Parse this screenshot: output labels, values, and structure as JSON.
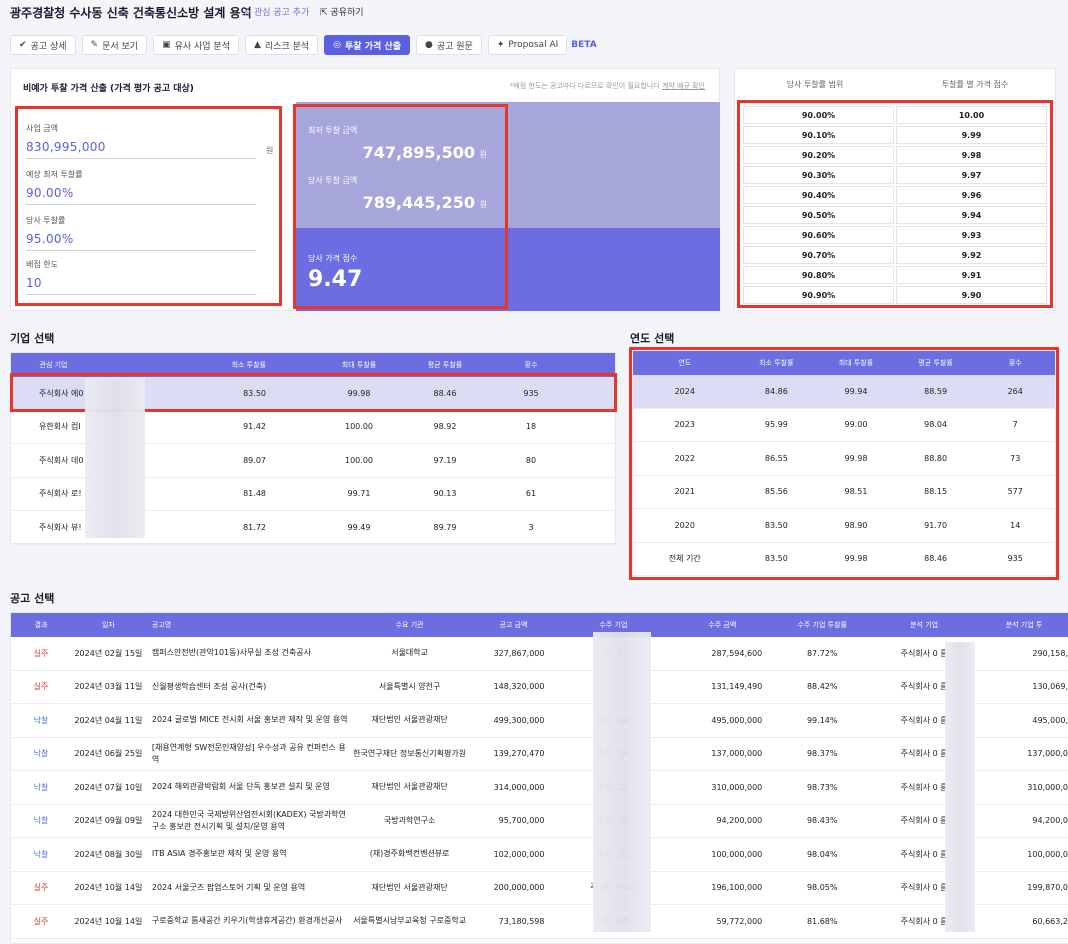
{
  "header": {
    "title": "광주경찰청 수사동 신축 건축통신소방 설계 용역",
    "fav_label": "관심 공고 추가",
    "share_label": "공유하기"
  },
  "tabs": [
    {
      "label": "공고 상세",
      "icon": "check-icon"
    },
    {
      "label": "문서 보기",
      "icon": "pencil-icon"
    },
    {
      "label": "유사 사업 분석",
      "icon": "briefcase-icon"
    },
    {
      "label": "리스크 분석",
      "icon": "warning-icon"
    },
    {
      "label": "투찰 가격 산출",
      "icon": "coins-icon",
      "active": true
    },
    {
      "label": "공고 원문",
      "icon": "flag-icon"
    },
    {
      "label": "Proposal AI",
      "icon": "sparkle-icon"
    }
  ],
  "beta": "BETA",
  "calc": {
    "title": "비예가 투찰 가격 산출 (가격 평가 공고 대상)",
    "note": "*배점 한도는 공고마다 다르므로 확인이 필요합니다",
    "note_link": "계약 예규 확인",
    "won": "원",
    "fields": [
      {
        "label": "사업 금액",
        "value": "830,995,000"
      },
      {
        "label": "예상 최저 투찰률",
        "value": "90.00%"
      },
      {
        "label": "당사 투찰률",
        "value": "95.00%"
      },
      {
        "label": "배점 한도",
        "value": "10"
      }
    ],
    "min_bid_label": "최저 투찰 금액",
    "min_bid_value": "747,895,500",
    "our_bid_label": "당사 투찰 금액",
    "our_bid_value": "789,445,250",
    "score_label": "당사 가격 점수",
    "score_value": "9.47"
  },
  "range": {
    "head": [
      "당사 투찰률 범위",
      "투찰률 별 가격 점수"
    ],
    "rows": [
      [
        "90.00%",
        "10.00"
      ],
      [
        "90.10%",
        "9.99"
      ],
      [
        "90.20%",
        "9.98"
      ],
      [
        "90.30%",
        "9.97"
      ],
      [
        "90.40%",
        "9.96"
      ],
      [
        "90.50%",
        "9.94"
      ],
      [
        "90.60%",
        "9.93"
      ],
      [
        "90.70%",
        "9.92"
      ],
      [
        "90.80%",
        "9.91"
      ],
      [
        "90.90%",
        "9.90"
      ]
    ]
  },
  "company": {
    "title": "기업 선택",
    "head": [
      "관심 기업",
      "최소 투찰률",
      "최대 투찰률",
      "평균 투찰률",
      "횟수"
    ],
    "rows": [
      [
        "주식회사 에0",
        "83.50",
        "99.98",
        "88.46",
        "935"
      ],
      [
        "유한회사 컴I",
        "91.42",
        "100.00",
        "98.92",
        "18"
      ],
      [
        "주식회사 데0",
        "89.07",
        "100.00",
        "97.19",
        "80"
      ],
      [
        "주식회사 로!",
        "81.48",
        "99.71",
        "90.13",
        "61"
      ],
      [
        "주식회사 뷰!",
        "81.72",
        "99.49",
        "89.79",
        "3"
      ]
    ]
  },
  "year": {
    "title": "연도 선택",
    "head": [
      "연도",
      "최소 투찰률",
      "최대 투찰률",
      "평균 투찰률",
      "횟수"
    ],
    "rows": [
      [
        "2024",
        "84.86",
        "99.94",
        "88.59",
        "264"
      ],
      [
        "2023",
        "95.99",
        "99.00",
        "98.04",
        "7"
      ],
      [
        "2022",
        "86.55",
        "99.98",
        "88.80",
        "73"
      ],
      [
        "2021",
        "85.56",
        "98.51",
        "88.15",
        "577"
      ],
      [
        "2020",
        "83.50",
        "98.90",
        "91.70",
        "14"
      ],
      [
        "전체 기간",
        "83.50",
        "99.98",
        "88.46",
        "935"
      ]
    ]
  },
  "notice": {
    "title": "공고 선택",
    "head": [
      "결과",
      "일자",
      "공고명",
      "수요 기관",
      "공고 금액",
      "수주 기업",
      "수주 금액",
      "수주 기업 투찰률",
      "분석 기업",
      "분석 기업 투"
    ],
    "rows": [
      [
        "실주",
        "2024년 02월 15일",
        "캠퍼스안전반(관악101동)사무실 조성 건축공사",
        "서울대학교",
        "327,867,000",
        "ㄹ 사",
        "287,594,600",
        "87.72%",
        "주식회사 0 름",
        "290,158,"
      ],
      [
        "실주",
        "2024년 03월 11일",
        "신월평생학습센터 조성 공사(건축)",
        "서울특별시 양천구",
        "148,320,000",
        "",
        "131,149,490",
        "88.42%",
        "주식회사 0 름",
        "130,069,"
      ],
      [
        "낙찰",
        "2024년 04월 11일",
        "2024 글로벌 MICE 전시회 서울 홍보관 제작 및 운영 용역",
        "재단법인 서울관광재단",
        "499,300,000",
        "주식 그룹",
        "495,000,000",
        "99.14%",
        "주식회사 0 름",
        "495,000,"
      ],
      [
        "낙찰",
        "2024년 06월 25일",
        "[채용연계형 SW전문인재양성] 우수성과 공유 컨퍼런스 용역",
        "한국연구재단 정보통신기획평가원",
        "139,270,470",
        "주식 그룹",
        "137,000,000",
        "98.37%",
        "주식회사 0 름",
        "137,000,0"
      ],
      [
        "낙찰",
        "2024년 07월 10일",
        "2024 해외관광박람회 서울 단독 홍보관 설치 및 운영",
        "재단법인 서울관광재단",
        "314,000,000",
        "주식 그룹",
        "310,000,000",
        "98.73%",
        "주식회사 0 름",
        "310,000,0"
      ],
      [
        "낙찰",
        "2024년 09월 09일",
        "2024 대한민국 국제방위산업전시회(KADEX) 국방과학연구소 홍보관 전시기획 및 설치/운영 용역",
        "국방과학연구소",
        "95,700,000",
        "주식 그룹",
        "94,200,000",
        "98.43%",
        "주식회사 0 름",
        "94,200,0"
      ],
      [
        "낙찰",
        "2024년 08월 30일",
        "ITB ASIA 경주홍보관 제작 및 운영 용역",
        "(재)경주화백컨벤션뷰로",
        "102,000,000",
        "주식 그룹",
        "100,000,000",
        "98.04%",
        "주식회사 0 름",
        "100,000,0"
      ],
      [
        "실주",
        "2024년 10월 14일",
        "2024 서울굿즈 팝업스토어 기획 및 운영 용역",
        "재단법인 서울관광재단",
        "200,000,000",
        "주식회 스튜디",
        "196,100,000",
        "98.05%",
        "주식회사 0 름",
        "199,870,0"
      ],
      [
        "실주",
        "2024년 10월 14일",
        "구로중학교 틈새공간 키우기(학생휴게공간) 환경개선공사",
        "서울특별시남부교육청 구로중학교",
        "73,180,598",
        "(주) 건축",
        "59,772,000",
        "81.68%",
        "주식회사 0 름",
        "60,663,2"
      ]
    ]
  }
}
